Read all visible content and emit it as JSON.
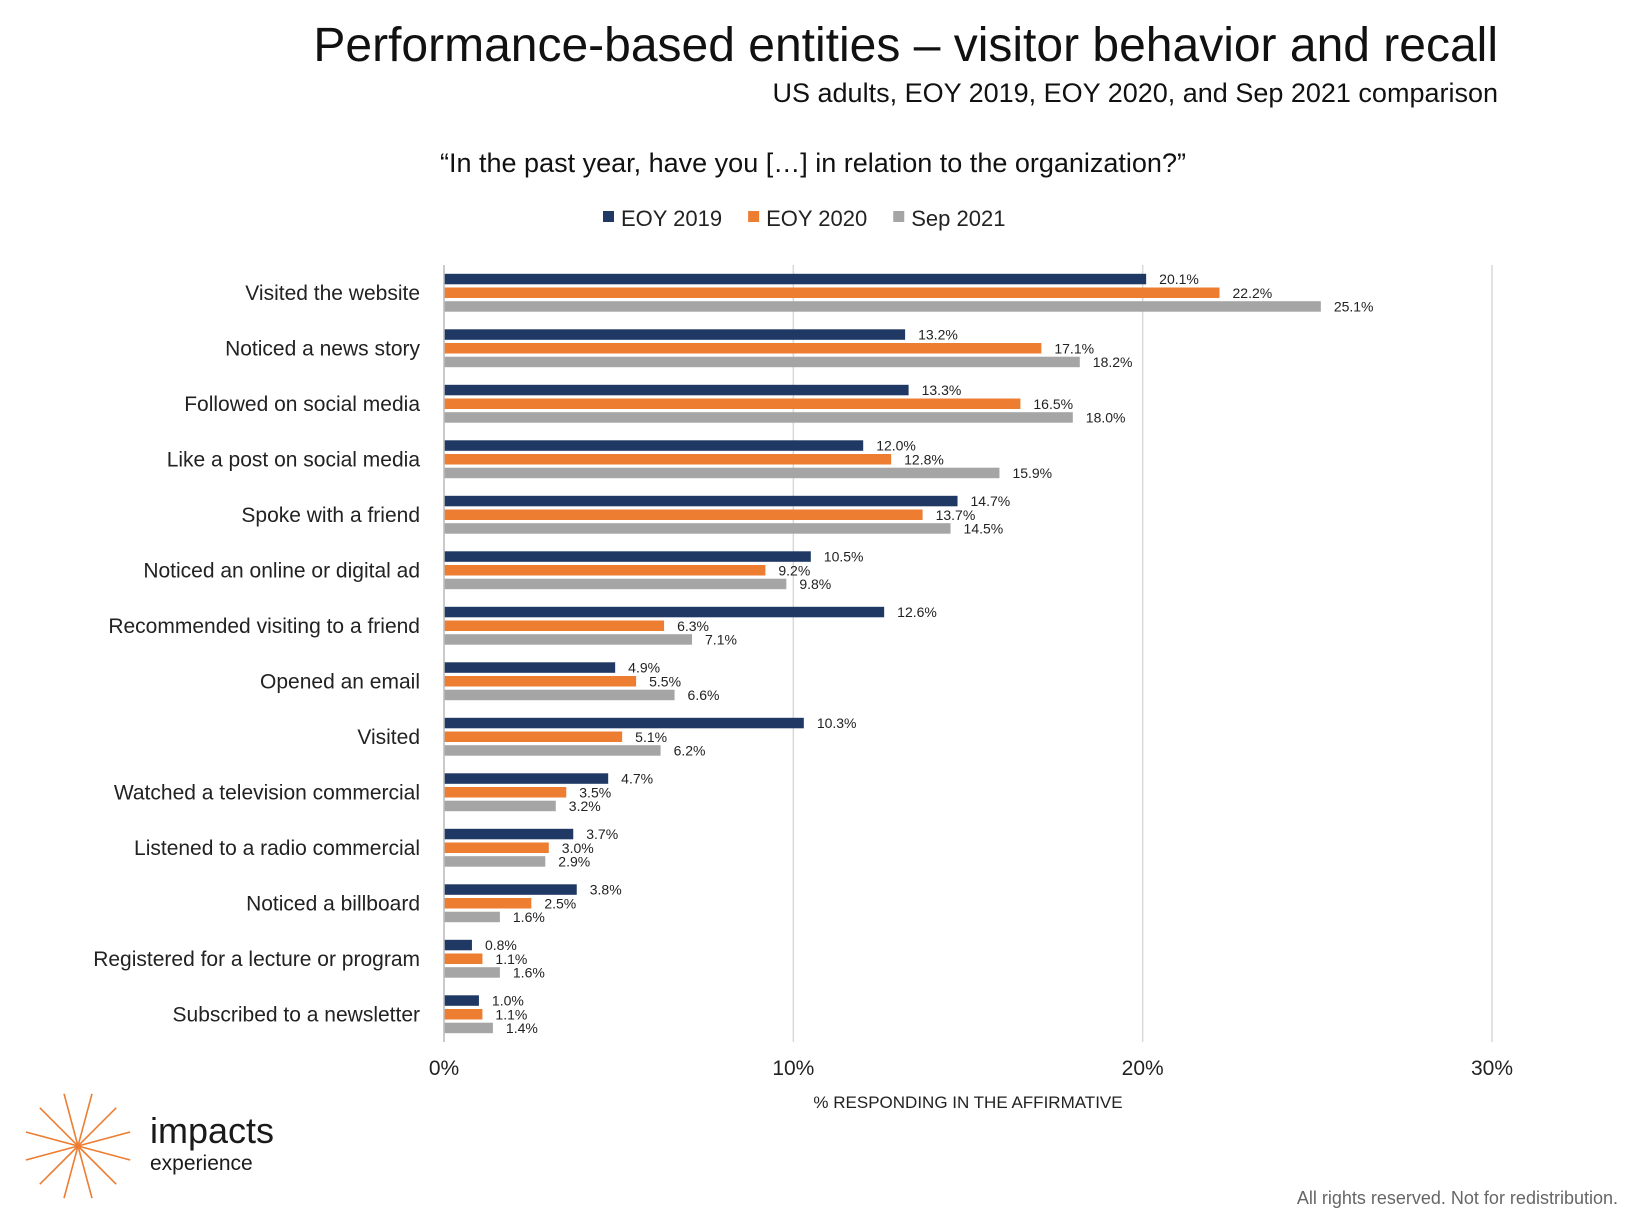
{
  "header": {
    "title": "Performance-based entities – visitor behavior and recall",
    "subtitle": "US adults, EOY 2019, EOY 2020, and Sep 2021 comparison",
    "question": "“In the past year, have you […] in relation to the organization?”"
  },
  "chart_data": {
    "type": "bar",
    "orientation": "horizontal",
    "xlabel": "% RESPONDING IN THE AFFIRMATIVE",
    "xlim": [
      0,
      30
    ],
    "xticks": [
      "0%",
      "10%",
      "20%",
      "30%"
    ],
    "grid": true,
    "legend_position": "top",
    "categories": [
      "Visited the website",
      "Noticed a news story",
      "Followed on social media",
      "Like a post on social media",
      "Spoke with a friend",
      "Noticed an online or digital ad",
      "Recommended visiting to a friend",
      "Opened an email",
      "Visited",
      "Watched a television commercial",
      "Listened to a radio commercial",
      "Noticed a billboard",
      "Registered for a lecture or program",
      "Subscribed to a newsletter"
    ],
    "series": [
      {
        "name": "EOY 2019",
        "color": "#1f3864",
        "values": [
          20.1,
          13.2,
          13.3,
          12.0,
          14.7,
          10.5,
          12.6,
          4.9,
          10.3,
          4.7,
          3.7,
          3.8,
          0.8,
          1.0
        ],
        "labels": [
          "20.1%",
          "13.2%",
          "13.3%",
          "12.0%",
          "14.7%",
          "10.5%",
          "12.6%",
          "4.9%",
          "10.3%",
          "4.7%",
          "3.7%",
          "3.8%",
          "0.8%",
          "1.0%"
        ]
      },
      {
        "name": "EOY 2020",
        "color": "#ed7d31",
        "values": [
          22.2,
          17.1,
          16.5,
          12.8,
          13.7,
          9.2,
          6.3,
          5.5,
          5.1,
          3.5,
          3.0,
          2.5,
          1.1,
          1.1
        ],
        "labels": [
          "22.2%",
          "17.1%",
          "16.5%",
          "12.8%",
          "13.7%",
          "9.2%",
          "6.3%",
          "5.5%",
          "5.1%",
          "3.5%",
          "3.0%",
          "2.5%",
          "1.1%",
          "1.1%"
        ]
      },
      {
        "name": "Sep 2021",
        "color": "#a5a5a5",
        "values": [
          25.1,
          18.2,
          18.0,
          15.9,
          14.5,
          9.8,
          7.1,
          6.6,
          6.2,
          3.2,
          2.9,
          1.6,
          1.6,
          1.4
        ],
        "labels": [
          "25.1%",
          "18.2%",
          "18.0%",
          "15.9%",
          "14.5%",
          "9.8%",
          "7.1%",
          "6.6%",
          "6.2%",
          "3.2%",
          "2.9%",
          "1.6%",
          "1.6%",
          "1.4%"
        ]
      }
    ]
  },
  "brand": {
    "name": "impacts",
    "sub": "experience",
    "logo_color": "#ed7d31"
  },
  "footer": {
    "text": "All rights reserved. Not for redistribution."
  }
}
